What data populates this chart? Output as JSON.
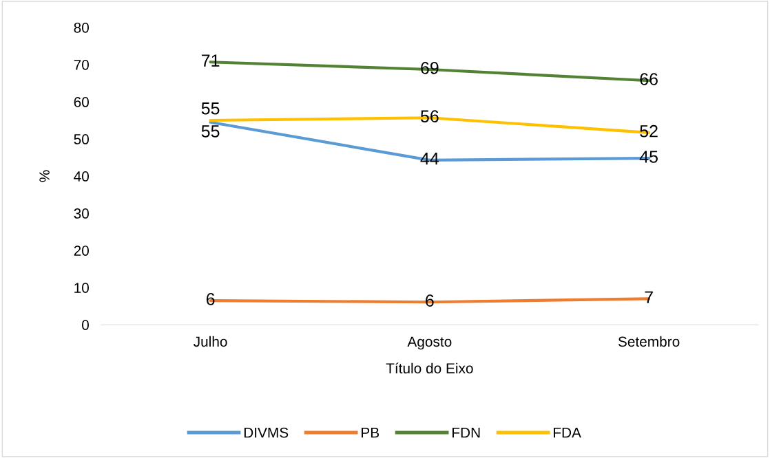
{
  "chart_data": {
    "type": "line",
    "xlabel": "Título do Eixo",
    "ylabel": "%",
    "categories": [
      "Julho",
      "Agosto",
      "Setembro"
    ],
    "series": [
      {
        "name": "DIVMS",
        "color": "#5b9bd5",
        "values": [
          54.5,
          44.3,
          44.8
        ],
        "value_labels": [
          "55",
          "44",
          "45"
        ]
      },
      {
        "name": "PB",
        "color": "#ed7d31",
        "values": [
          6.5,
          6.1,
          7.0
        ],
        "value_labels": [
          "6",
          "6",
          "7"
        ]
      },
      {
        "name": "FDN",
        "color": "#548235",
        "values": [
          70.7,
          68.7,
          65.7
        ],
        "value_labels": [
          "71",
          "69",
          "66"
        ]
      },
      {
        "name": "FDA",
        "color": "#ffc000",
        "values": [
          55.0,
          55.7,
          51.7
        ],
        "value_labels": [
          "55",
          "56",
          "52"
        ]
      }
    ],
    "ylim": [
      0,
      80
    ],
    "yticks": [
      0,
      10,
      20,
      30,
      40,
      50,
      60,
      70,
      80
    ],
    "grid": false,
    "legend": "bottom",
    "marker": "none",
    "line_style": "solid"
  }
}
